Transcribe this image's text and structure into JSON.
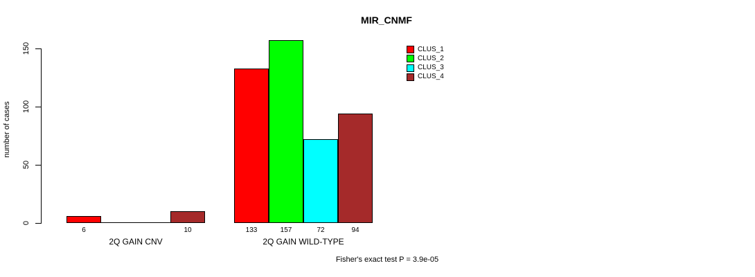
{
  "chart_data": {
    "type": "bar",
    "title": "MIR_CNMF",
    "xlabel": "",
    "ylabel": "number of cases",
    "categories": [
      "2Q GAIN CNV",
      "2Q GAIN WILD-TYPE"
    ],
    "series": [
      {
        "name": "CLUS_1",
        "color": "#FF0000",
        "values": [
          6,
          133
        ]
      },
      {
        "name": "CLUS_2",
        "color": "#00FF00",
        "values": [
          0,
          157
        ]
      },
      {
        "name": "CLUS_3",
        "color": "#00FFFF",
        "values": [
          0,
          72
        ]
      },
      {
        "name": "CLUS_4",
        "color": "#A52A2A",
        "values": [
          10,
          94
        ]
      }
    ],
    "bar_value_labels": [
      [
        "6",
        "",
        "",
        "10"
      ],
      [
        "133",
        "157",
        "72",
        "94"
      ]
    ],
    "yticks": [
      "0",
      "50",
      "100",
      "150"
    ],
    "ytick_values": [
      0,
      50,
      100,
      150
    ],
    "ylim": [
      0,
      157
    ],
    "grid": false,
    "legend_position": "top-right",
    "legend_entries": [
      {
        "label": "CLUS_1",
        "color": "#FF0000"
      },
      {
        "label": "CLUS_2",
        "color": "#00FF00"
      },
      {
        "label": "CLUS_3",
        "color": "#00FFFF"
      },
      {
        "label": "CLUS_4",
        "color": "#A52A2A"
      }
    ],
    "annotation": "Fisher's exact test P = 3.9e-05"
  }
}
